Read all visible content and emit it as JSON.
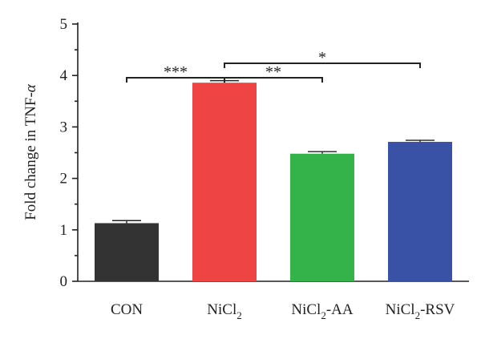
{
  "chart_data": {
    "type": "bar",
    "title": "",
    "xlabel": "",
    "ylabel": "Fold change in TNF-",
    "ylabel_symbol": "α",
    "ylim": [
      0,
      5
    ],
    "yticks": [
      "0",
      "1",
      "2",
      "3",
      "4",
      "5"
    ],
    "grid": false,
    "categories": [
      {
        "base": "CON",
        "sub": "",
        "suffix": ""
      },
      {
        "base": "NiCl",
        "sub": "2",
        "suffix": ""
      },
      {
        "base": "NiCl",
        "sub": "2",
        "suffix": "-AA"
      },
      {
        "base": "NiCl",
        "sub": "2",
        "suffix": "-RSV"
      }
    ],
    "values": [
      1.13,
      3.86,
      2.48,
      2.71
    ],
    "errors": [
      0.05,
      0.04,
      0.04,
      0.03
    ],
    "colors": [
      "#333333",
      "#ee4444",
      "#33b34a",
      "#3a52a5"
    ],
    "significance": [
      {
        "from": 0,
        "to": 1,
        "label": "***"
      },
      {
        "from": 1,
        "to": 2,
        "label": "**"
      },
      {
        "from": 1,
        "to": 3,
        "label": "*"
      }
    ]
  }
}
